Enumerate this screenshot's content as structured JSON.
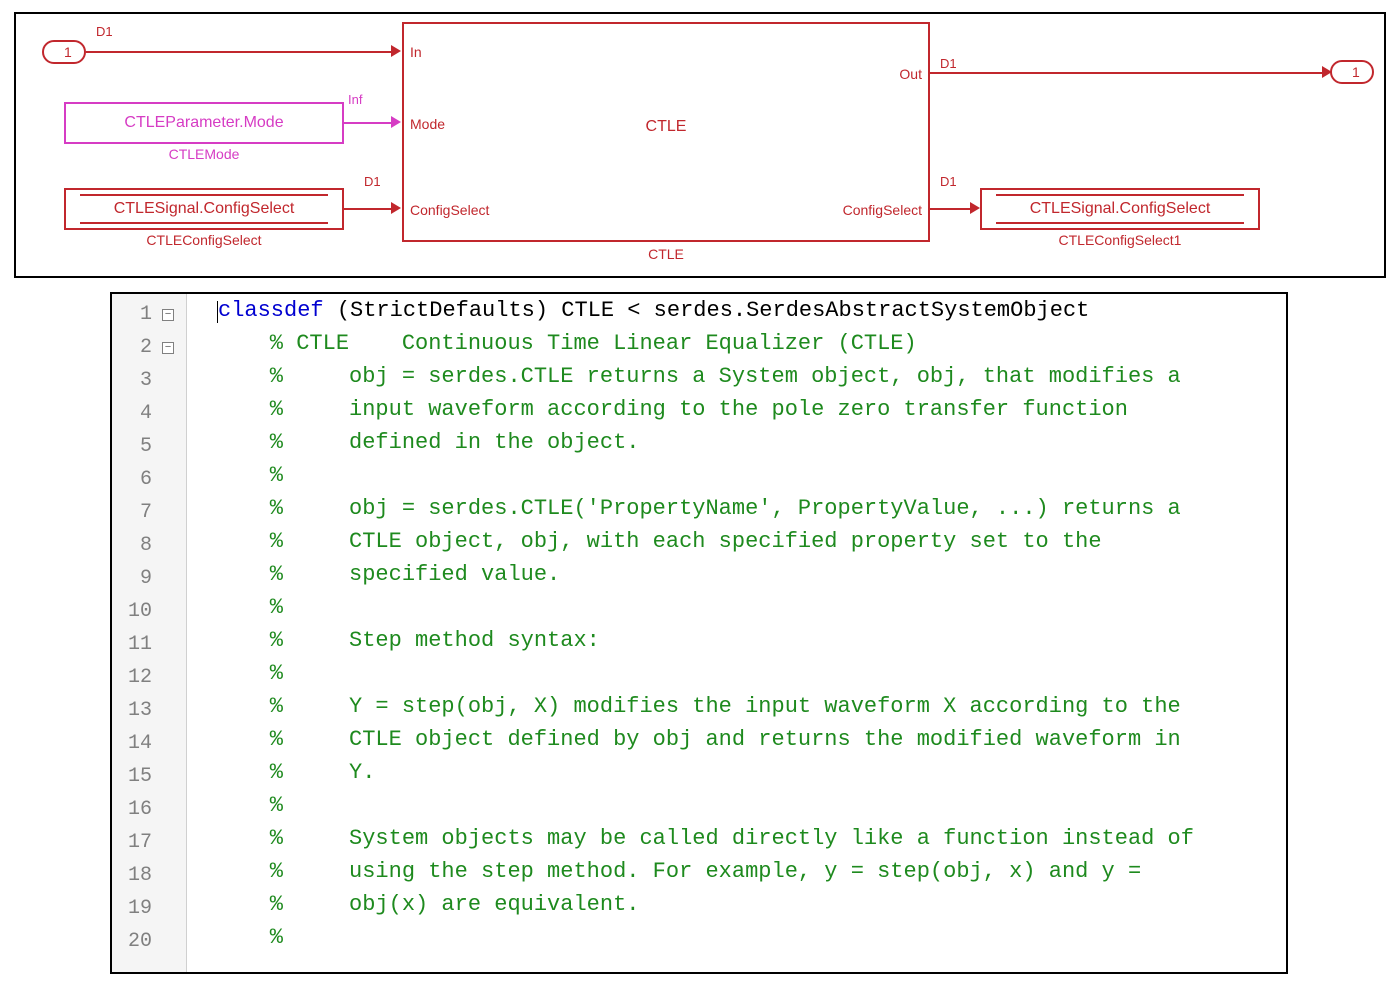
{
  "colors": {
    "red": "#c1272d",
    "magenta": "#d63cc4",
    "black": "#000000",
    "comment": "#1e8a1e",
    "keyword": "#0000d0",
    "gutter_text": "#808080",
    "gutter_bg": "#f5f5f5"
  },
  "diagram": {
    "inport": {
      "label": "1",
      "signal": "D1"
    },
    "outport": {
      "label": "1",
      "signal": "D1"
    },
    "mode_block": {
      "text": "CTLEParameter.Mode",
      "caption": "CTLEMode",
      "signal": "Inf"
    },
    "cfgsel_in": {
      "text": "CTLESignal.ConfigSelect",
      "caption": "CTLEConfigSelect",
      "signal": "D1"
    },
    "cfgsel_out": {
      "text": "CTLESignal.ConfigSelect",
      "caption": "CTLEConfigSelect1",
      "signal": "D1"
    },
    "ctle": {
      "title": "CTLE",
      "caption": "CTLE",
      "ports_in": [
        "In",
        "Mode",
        "ConfigSelect"
      ],
      "ports_out": [
        "Out",
        "ConfigSelect"
      ]
    }
  },
  "code": {
    "lines": [
      {
        "n": 1,
        "fold": "-",
        "segs": [
          [
            "cursor",
            ""
          ],
          [
            "kw",
            "classdef"
          ],
          [
            "plain",
            " (StrictDefaults) CTLE < serdes.SerdesAbstractSystemObject"
          ]
        ]
      },
      {
        "n": 2,
        "fold": "-",
        "segs": [
          [
            "cmt",
            "    % CTLE    Continuous Time Linear Equalizer (CTLE)"
          ]
        ]
      },
      {
        "n": 3,
        "segs": [
          [
            "cmt",
            "    %     obj = serdes.CTLE returns a System object, obj, that modifies a"
          ]
        ]
      },
      {
        "n": 4,
        "segs": [
          [
            "cmt",
            "    %     input waveform according to the pole zero transfer function"
          ]
        ]
      },
      {
        "n": 5,
        "segs": [
          [
            "cmt",
            "    %     defined in the object."
          ]
        ]
      },
      {
        "n": 6,
        "segs": [
          [
            "cmt",
            "    %"
          ]
        ]
      },
      {
        "n": 7,
        "segs": [
          [
            "cmt",
            "    %     obj = serdes.CTLE('PropertyName', PropertyValue, ...) returns a"
          ]
        ]
      },
      {
        "n": 8,
        "segs": [
          [
            "cmt",
            "    %     CTLE object, obj, with each specified property set to the"
          ]
        ]
      },
      {
        "n": 9,
        "segs": [
          [
            "cmt",
            "    %     specified value."
          ]
        ]
      },
      {
        "n": 10,
        "segs": [
          [
            "cmt",
            "    %"
          ]
        ]
      },
      {
        "n": 11,
        "segs": [
          [
            "cmt",
            "    %     Step method syntax:"
          ]
        ]
      },
      {
        "n": 12,
        "segs": [
          [
            "cmt",
            "    %"
          ]
        ]
      },
      {
        "n": 13,
        "segs": [
          [
            "cmt",
            "    %     Y = step(obj, X) modifies the input waveform X according to the"
          ]
        ]
      },
      {
        "n": 14,
        "segs": [
          [
            "cmt",
            "    %     CTLE object defined by obj and returns the modified waveform in"
          ]
        ]
      },
      {
        "n": 15,
        "segs": [
          [
            "cmt",
            "    %     Y."
          ]
        ]
      },
      {
        "n": 16,
        "segs": [
          [
            "cmt",
            "    %"
          ]
        ]
      },
      {
        "n": 17,
        "segs": [
          [
            "cmt",
            "    %     System objects may be called directly like a function instead of"
          ]
        ]
      },
      {
        "n": 18,
        "segs": [
          [
            "cmt",
            "    %     using the step method. For example, y = step(obj, x) and y ="
          ]
        ]
      },
      {
        "n": 19,
        "segs": [
          [
            "cmt",
            "    %     obj(x) are equivalent."
          ]
        ]
      },
      {
        "n": 20,
        "segs": [
          [
            "cmt",
            "    %"
          ]
        ]
      }
    ]
  }
}
